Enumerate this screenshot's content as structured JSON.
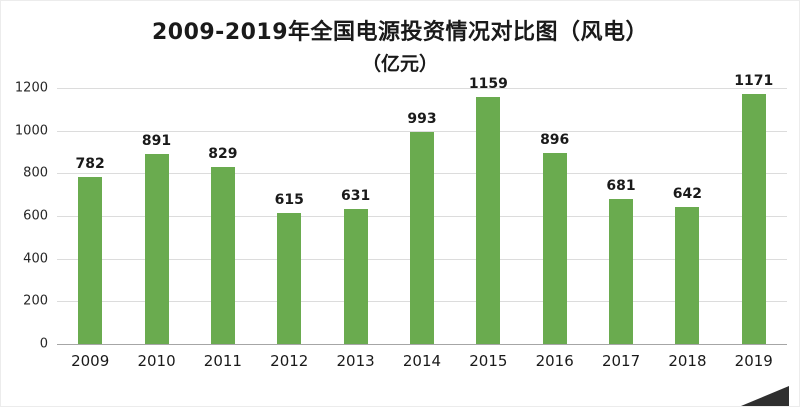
{
  "chart": {
    "title": "2009-2019年全国电源投资情况对比图（风电）",
    "subtitle": "（亿元）"
  },
  "chart_data": {
    "type": "bar",
    "title": "2009-2019年全国电源投资情况对比图（风电）",
    "subtitle": "（亿元）",
    "categories": [
      "2009",
      "2010",
      "2011",
      "2012",
      "2013",
      "2014",
      "2015",
      "2016",
      "2017",
      "2018",
      "2019"
    ],
    "values": [
      782,
      891,
      829,
      615,
      631,
      993,
      1159,
      896,
      681,
      642,
      1171
    ],
    "xlabel": "",
    "ylabel": "",
    "ylim": [
      0,
      1200
    ],
    "ytick_step": 200,
    "yticks": [
      0,
      200,
      400,
      600,
      800,
      1000,
      1200
    ],
    "grid": true,
    "legend": "none",
    "bar_color": "#6aab4f",
    "gridline_color": "#dcdcdc",
    "axis_line_color": "#a6a6a6"
  },
  "decorations": {
    "corner_watermark_color": "#2f2f2f"
  }
}
